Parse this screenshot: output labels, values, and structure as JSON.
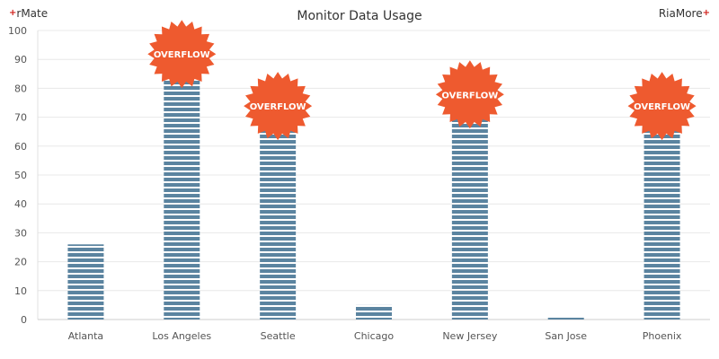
{
  "logos": {
    "left": "rMate",
    "right": "RiaMore"
  },
  "chart_data": {
    "type": "bar",
    "title": "Monitor Data Usage",
    "categories": [
      "Atlanta",
      "Los Angeles",
      "Seattle",
      "Chicago",
      "New Jersey",
      "San Jose",
      "Phoenix"
    ],
    "values": [
      26,
      90,
      72,
      5,
      76,
      1,
      72
    ],
    "ylim": [
      0,
      100
    ],
    "yticks": [
      0,
      10,
      20,
      30,
      40,
      50,
      60,
      70,
      80,
      90,
      100
    ],
    "xlabel": "",
    "ylabel": "",
    "grid": true,
    "overflow": [
      false,
      true,
      true,
      false,
      true,
      false,
      true
    ],
    "overflow_label": "OVERFLOW",
    "colors": {
      "bar": "#5b84a0",
      "badge": "#ee5a2f",
      "grid": "#e8e8e8"
    }
  }
}
